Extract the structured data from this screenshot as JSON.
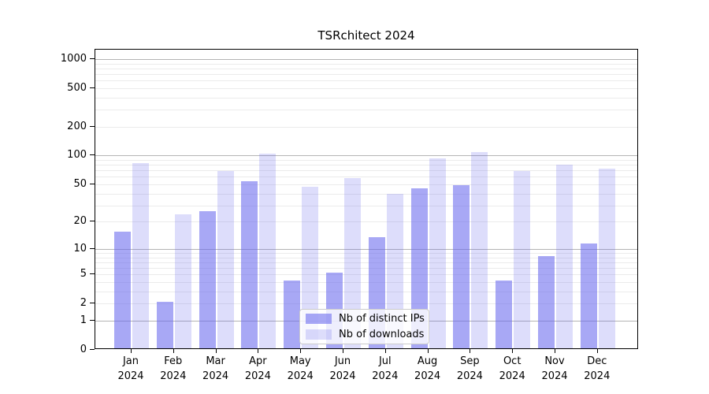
{
  "title": "TSRchitect 2024",
  "legend": {
    "items": [
      {
        "label": "Nb of distinct IPs",
        "color": "rgba(102,102,238,0.57)"
      },
      {
        "label": "Nb of downloads",
        "color": "rgba(102,102,238,0.22)"
      }
    ]
  },
  "chart_data": {
    "type": "bar",
    "title": "TSRchitect 2024",
    "categories": [
      "Jan 2024",
      "Feb 2024",
      "Mar 2024",
      "Apr 2024",
      "May 2024",
      "Jun 2024",
      "Jul 2024",
      "Aug 2024",
      "Sep 2024",
      "Oct 2024",
      "Nov 2024",
      "Dec 2024"
    ],
    "series": [
      {
        "name": "Nb of distinct IPs",
        "color": "rgba(102,102,238,0.57)",
        "values": [
          15,
          2,
          25,
          52,
          4,
          5,
          13,
          44,
          47,
          4,
          8,
          11
        ]
      },
      {
        "name": "Nb of downloads",
        "color": "rgba(102,102,238,0.22)",
        "values": [
          80,
          23,
          66,
          100,
          45,
          56,
          38,
          90,
          105,
          66,
          78,
          70
        ]
      }
    ],
    "xlabel": "",
    "ylabel": "",
    "yscale": "log10(value+1)",
    "yticks": [
      1000,
      500,
      200,
      100,
      50,
      20,
      10,
      5,
      2,
      1,
      0
    ],
    "minor_gridlines": [
      2,
      3,
      4,
      5,
      6,
      7,
      8,
      9,
      20,
      30,
      40,
      50,
      60,
      70,
      80,
      90,
      200,
      300,
      400,
      500,
      600,
      700,
      800,
      900
    ],
    "major_gridlines": [
      1,
      10,
      100,
      1000
    ],
    "ylim": [
      0,
      1250
    ],
    "grid": true,
    "legend_position": "lower-center-inside"
  }
}
